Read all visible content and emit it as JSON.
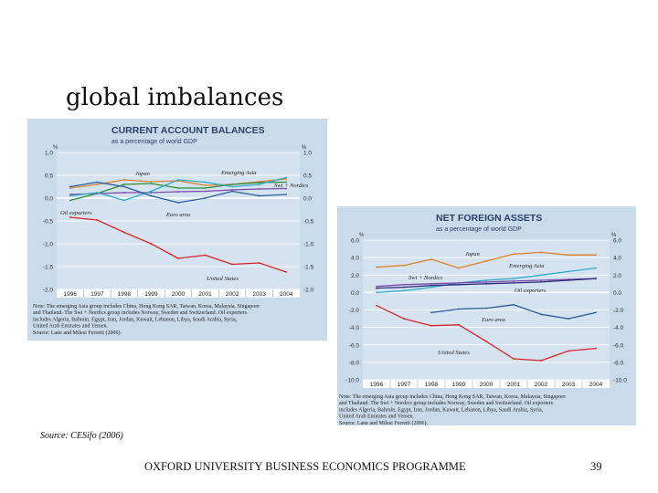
{
  "slide": {
    "title": "global imbalances",
    "source": "Source: CESifo (2006)",
    "footer": "OXFORD UNIVERSITY BUSINESS ECONOMICS PROGRAMME",
    "page_number": "39"
  },
  "chart_data": [
    {
      "type": "line",
      "title": "CURRENT ACCOUNT BALANCES",
      "subtitle": "as a percentage of world GDP",
      "unit_label": "%",
      "categories": [
        "1996",
        "1997",
        "1998",
        "1999",
        "2000",
        "2001",
        "2002",
        "2003",
        "2004"
      ],
      "ylim": [
        -2.0,
        1.0
      ],
      "yticks": [
        "1.0",
        "0.5",
        "0.0",
        "-0.5",
        "-1.0",
        "-1.5",
        "-2.0"
      ],
      "ytick_values": [
        1.0,
        0.5,
        0.0,
        -0.5,
        -1.0,
        -1.5,
        -2.0
      ],
      "series": [
        {
          "name": "Japan",
          "color": "#d9822b",
          "values": [
            0.22,
            0.3,
            0.4,
            0.36,
            0.38,
            0.28,
            0.3,
            0.36,
            0.42
          ]
        },
        {
          "name": "Emerging Asia",
          "color": "#2e8b3a",
          "values": [
            -0.05,
            0.1,
            0.3,
            0.32,
            0.22,
            0.22,
            0.3,
            0.34,
            0.35
          ]
        },
        {
          "name": "Swi + Nordics",
          "color": "#7a4aa8",
          "values": [
            0.08,
            0.1,
            0.12,
            0.12,
            0.14,
            0.15,
            0.18,
            0.2,
            0.21
          ]
        },
        {
          "name": "Oil exporters",
          "color": "#2fa8c9",
          "values": [
            0.05,
            0.12,
            -0.05,
            0.15,
            0.4,
            0.35,
            0.25,
            0.3,
            0.45
          ]
        },
        {
          "name": "Euro area",
          "color": "#2a5c9a",
          "values": [
            0.25,
            0.35,
            0.25,
            0.05,
            -0.1,
            0.0,
            0.15,
            0.05,
            0.08
          ]
        },
        {
          "name": "United States",
          "color": "#d6262b",
          "values": [
            -0.42,
            -0.48,
            -0.75,
            -1.0,
            -1.32,
            -1.25,
            -1.45,
            -1.42,
            -1.62
          ]
        }
      ],
      "note": "Note: The emerging Asia group includes China, Hong Kong SAR, Taiwan, Korea, Malaysia, Singapore and Thailand. The Swi + Nordics group includes Norway, Sweden and Switzerland. Oil exporters includes Algeria, Bahrain, Egypt, Iran, Jordan, Kuwait, Lebanon, Libya, Saudi Arabia, Syria, United Arab Emirates and Yemen.",
      "source": "Source: Lane and Milesi Ferretti (2006)."
    },
    {
      "type": "line",
      "title": "NET FOREIGN ASSETS",
      "subtitle": "as a percentage of world GDP",
      "unit_label": "%",
      "categories": [
        "1996",
        "1997",
        "1998",
        "1999",
        "2000",
        "2001",
        "2002",
        "2003",
        "2004"
      ],
      "ylim": [
        -10.0,
        6.0
      ],
      "yticks": [
        "6.0",
        "4.0",
        "2.0",
        "0.0",
        "-2.0",
        "-4.0",
        "-6.0",
        "-8.0",
        "-10.0"
      ],
      "ytick_values": [
        6.0,
        4.0,
        2.0,
        0.0,
        -2.0,
        -4.0,
        -6.0,
        -8.0,
        -10.0
      ],
      "series": [
        {
          "name": "Japan",
          "color": "#d9822b",
          "values": [
            2.9,
            3.1,
            3.8,
            2.8,
            3.6,
            4.4,
            4.6,
            4.3,
            4.3
          ]
        },
        {
          "name": "Emerging Asia",
          "color": "#2fa8c9",
          "values": [
            0.0,
            0.2,
            0.6,
            1.1,
            1.4,
            1.6,
            2.0,
            2.4,
            2.8
          ]
        },
        {
          "name": "Swi + Nordics",
          "color": "#7a4aa8",
          "values": [
            0.7,
            0.9,
            1.0,
            1.1,
            1.2,
            1.3,
            1.4,
            1.5,
            1.6
          ]
        },
        {
          "name": "Oil exporters",
          "color": "#2a2a7a",
          "values": [
            0.5,
            0.6,
            0.8,
            0.9,
            1.0,
            1.1,
            1.2,
            1.4,
            1.6
          ]
        },
        {
          "name": "Euro area",
          "color": "#2a5c9a",
          "values": [
            null,
            null,
            -2.3,
            -1.9,
            -1.8,
            -1.4,
            -2.5,
            -3.0,
            -2.3
          ]
        },
        {
          "name": "United States",
          "color": "#d6262b",
          "values": [
            -1.5,
            -3.0,
            -3.8,
            -3.7,
            -5.6,
            -7.6,
            -7.8,
            -6.7,
            -6.4
          ]
        }
      ],
      "note": "Note: The emerging Asia group includes China, Hong Kong SAR, Taiwan, Korea, Malaysia, Singapore and Thailand. The Swi + Nordics group includes Norway, Sweden and Switzerland. Oil exporters includes Algeria, Bahrain, Egypt, Iran, Jordan, Kuwait, Lebanon, Libya, Saudi Arabia, Syria, United Arab Emirates and Yemen.",
      "source": "Source: Lane and Milesi Ferretti (2006)."
    }
  ]
}
